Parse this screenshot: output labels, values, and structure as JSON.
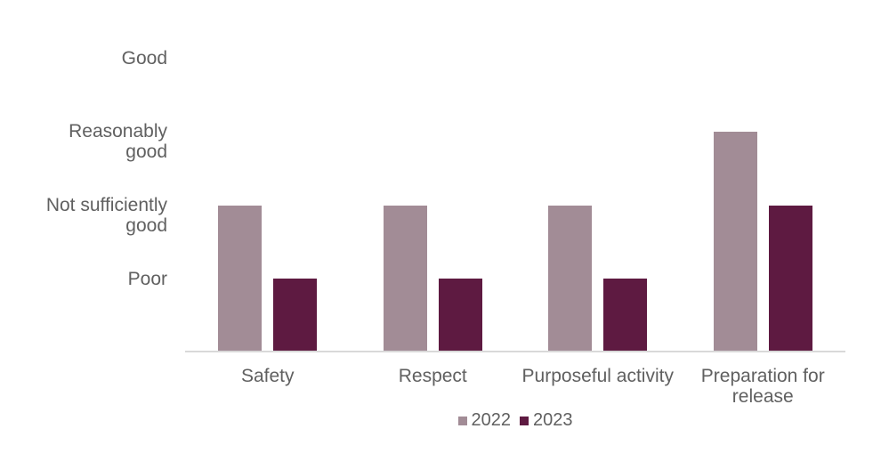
{
  "chart_data": {
    "type": "bar",
    "title": "",
    "xlabel": "",
    "ylabel": "",
    "categories": [
      "Safety",
      "Respect",
      "Purposeful activity",
      "Preparation for\nrelease"
    ],
    "series": [
      {
        "name": "2022",
        "color": "#a28c96",
        "values": [
          2,
          2,
          2,
          3
        ]
      },
      {
        "name": "2023",
        "color": "#5e1a41",
        "values": [
          1,
          1,
          1,
          2
        ]
      }
    ],
    "y_ticks": [
      {
        "value": 4,
        "label": "Good"
      },
      {
        "value": 3,
        "label": "Reasonably\ngood"
      },
      {
        "value": 2,
        "label": "Not sufficiently\ngood"
      },
      {
        "value": 1,
        "label": "Poor"
      }
    ],
    "ylim": [
      0,
      4
    ],
    "grid": false,
    "legend_position": "bottom-center"
  },
  "colors": {
    "background": "#ffffff",
    "axis_line": "#d9d9d9",
    "label_text": "#606060",
    "series_2022": "#a28c96",
    "series_2023": "#5e1a41"
  }
}
